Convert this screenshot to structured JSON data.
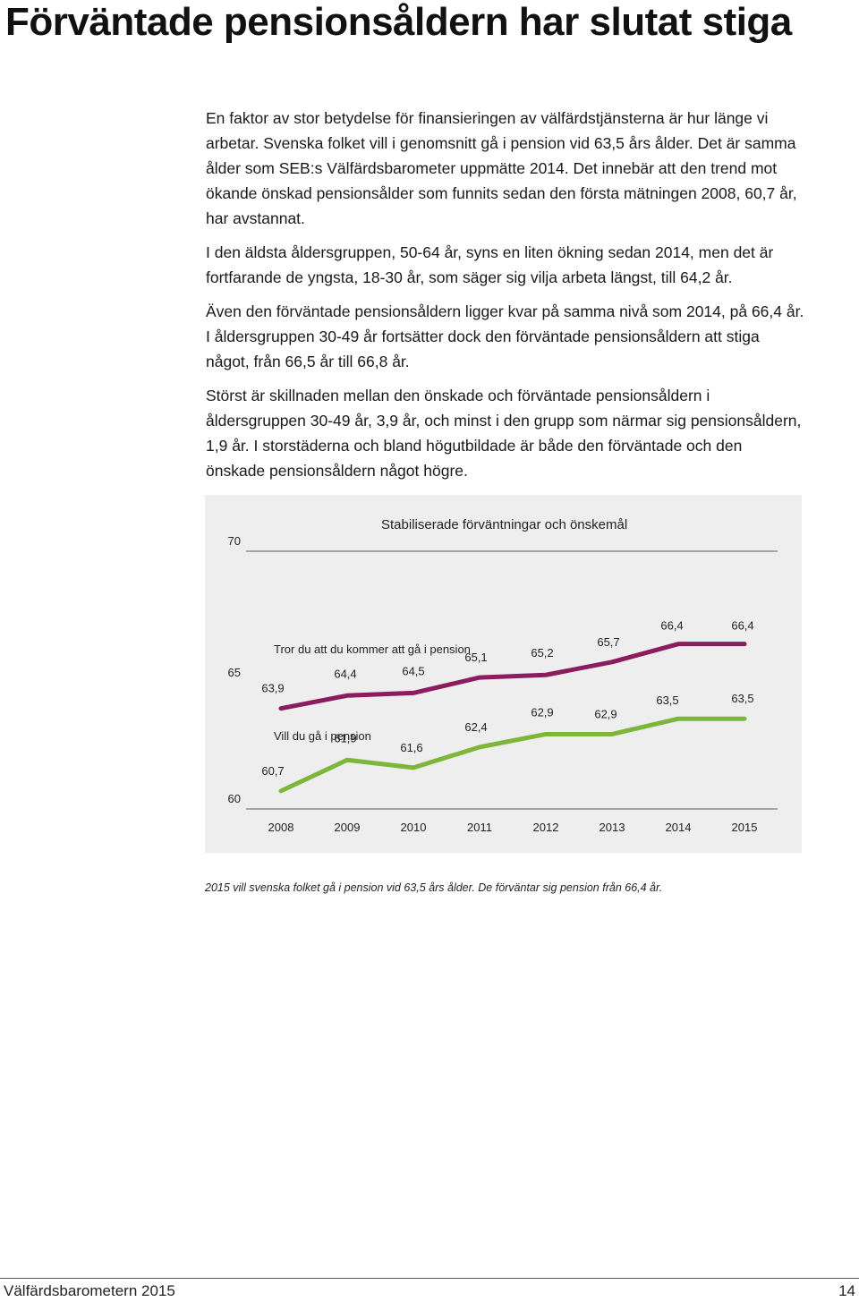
{
  "page": {
    "title": "Förväntade pensionsåldern har slutat stiga",
    "paragraphs": [
      "En faktor av stor betydelse för finansieringen av välfärdstjänsterna är hur länge vi arbetar. Svenska folket vill i genomsnitt gå i pension vid 63,5 års ålder. Det är samma ålder som SEB:s Välfärdsbarometer uppmätte 2014. Det innebär att den trend mot ökande önskad pensionsålder som funnits sedan den första mätningen 2008, 60,7 år, har avstannat.",
      "I den äldsta åldersgruppen, 50-64 år, syns en liten ökning sedan 2014, men det är fortfarande de yngsta, 18-30 år, som säger sig vilja arbeta längst, till 64,2 år.",
      "Även den förväntade pensionsåldern ligger kvar på samma nivå som 2014, på 66,4 år. I åldersgruppen 30-49 år fortsätter dock den förväntade pensionsåldern att stiga något, från 66,5 år till 66,8 år.",
      "Störst är skillnaden mellan den önskade och förväntade pensionsåldern i åldersgruppen 30-49 år, 3,9 år, och minst i den grupp som närmar sig pensionsåldern, 1,9 år. I storstäderna och bland högutbildade är både den förväntade och den önskade pensionsåldern något högre."
    ],
    "caption": "2015 vill svenska folket gå i pension vid 63,5 års ålder. De förväntar sig pension från 66,4 år.",
    "footer": {
      "publication": "Välfärdsbarometern 2015",
      "page_number": "14"
    }
  },
  "chart_data": {
    "type": "line",
    "title": "Stabiliserade förväntningar och önskemål",
    "x": [
      "2008",
      "2009",
      "2010",
      "2011",
      "2012",
      "2013",
      "2014",
      "2015"
    ],
    "ylim": [
      60,
      70
    ],
    "yticks": [
      "60",
      "65",
      "70"
    ],
    "grid": false,
    "series": [
      {
        "name": "Tror du att du kommer att gå i pension",
        "values": [
          63.9,
          64.4,
          64.5,
          65.1,
          65.2,
          65.7,
          66.4,
          66.4
        ],
        "labels": [
          "63,9",
          "64,4",
          "64,5",
          "65,1",
          "65,2",
          "65,7",
          "66,4",
          "66,4"
        ],
        "color": "#8b1c5e"
      },
      {
        "name": "Vill du gå i pension",
        "values": [
          60.7,
          61.9,
          61.6,
          62.4,
          62.9,
          62.9,
          63.5,
          63.5
        ],
        "labels": [
          "60,7",
          "61,9",
          "61,6",
          "62,4",
          "62,9",
          "62,9",
          "63,5",
          "63,5"
        ],
        "color": "#7cb73a"
      }
    ]
  }
}
